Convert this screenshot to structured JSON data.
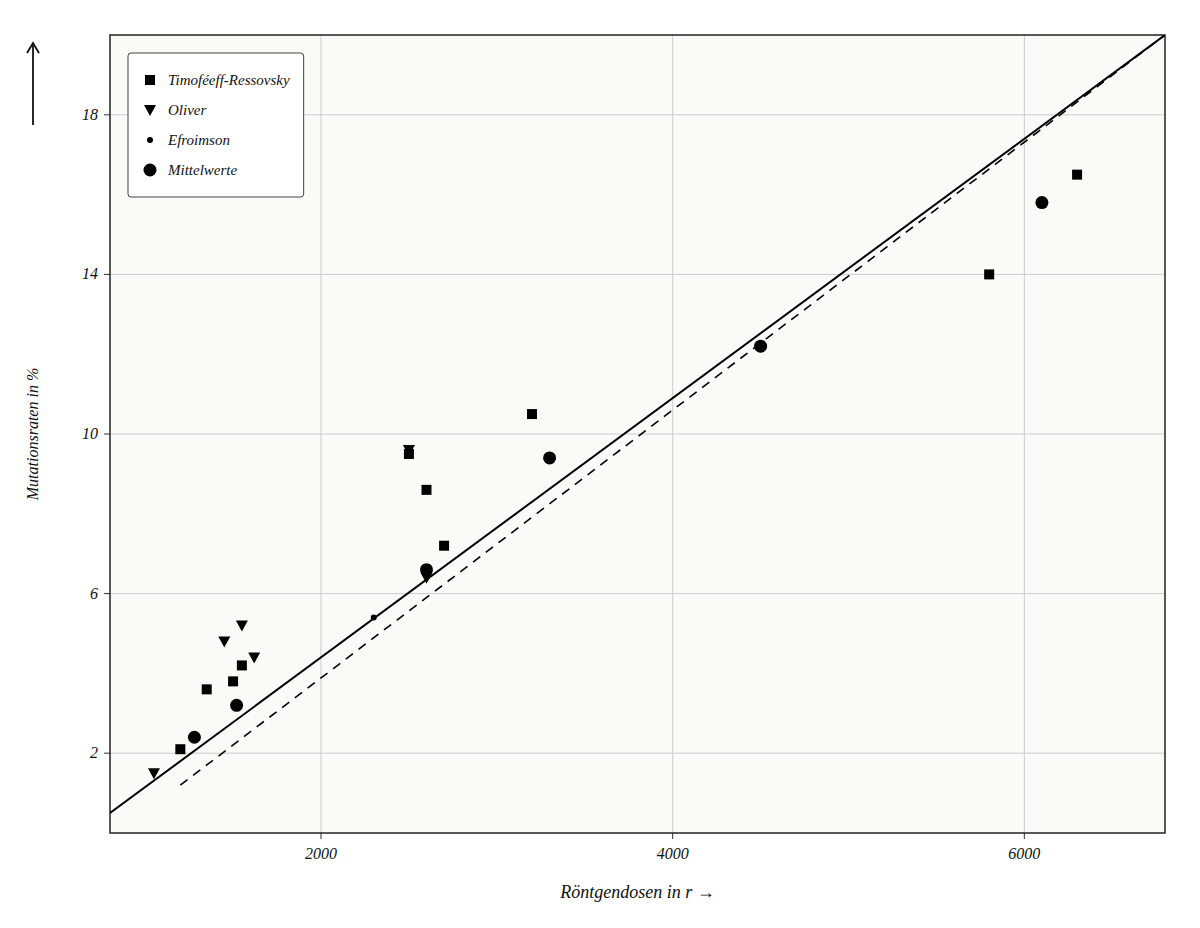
{
  "chart_data": {
    "type": "scatter",
    "x_label": "Röntgendosen in r →",
    "y_label": "Mutationsraten in %",
    "xlim": [
      800,
      6800
    ],
    "ylim": [
      0,
      20
    ],
    "xticks": [
      2000,
      4000,
      6000
    ],
    "yticks": [
      2,
      6,
      10,
      14,
      18
    ],
    "grid": true,
    "legend": "upper left",
    "series": [
      {
        "type": "line",
        "line_style": "solid",
        "color": "black",
        "x": [
          800,
          6800
        ],
        "values": [
          0.5,
          20.0
        ]
      },
      {
        "type": "line",
        "line_style": "dashed",
        "color": "black",
        "x": [
          1200,
          6800
        ],
        "values": [
          1.2,
          20.0
        ]
      },
      {
        "name": "Timoféeff-Ressovsky",
        "type": "scatter",
        "marker": "square",
        "color": "black",
        "x": [
          1200,
          1350,
          1500,
          1550,
          2500,
          2600,
          2700,
          3200,
          5800,
          6300
        ],
        "values": [
          2.1,
          3.6,
          3.8,
          4.2,
          9.5,
          8.6,
          7.2,
          10.5,
          14.0,
          16.5
        ]
      },
      {
        "name": "Oliver",
        "type": "scatter",
        "marker": "triangle-down",
        "color": "black",
        "x": [
          1050,
          1450,
          1550,
          1620,
          2500,
          2600
        ],
        "values": [
          1.5,
          4.8,
          5.2,
          4.4,
          9.6,
          6.4
        ]
      },
      {
        "name": "Efroimson",
        "type": "scatter",
        "marker": "dot",
        "color": "black",
        "x": [
          2300
        ],
        "values": [
          5.4
        ]
      },
      {
        "name": "Mittelwerte",
        "type": "scatter",
        "marker": "circle",
        "color": "black",
        "x": [
          1280,
          1520,
          2600,
          3300,
          4500,
          6100
        ],
        "values": [
          2.4,
          3.2,
          6.6,
          9.4,
          12.2,
          15.8
        ]
      }
    ]
  }
}
